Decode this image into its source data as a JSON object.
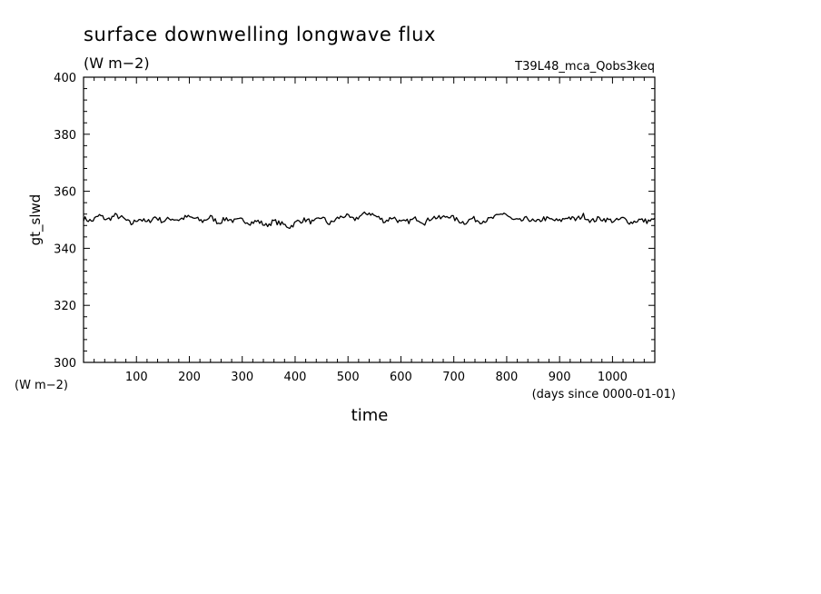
{
  "title": "surface downwelling longwave flux",
  "units": "(W m−2)",
  "run_label": "T39L48_mca_Qobs3keq",
  "yunits_corner": "(W m−2)",
  "xunits_note": "(days since 0000-01-01)",
  "chart_data": {
    "type": "line",
    "title": "surface downwelling longwave flux",
    "xlabel": "time",
    "ylabel": "gt_slwd",
    "xlim": [
      0,
      1080
    ],
    "ylim": [
      300,
      400
    ],
    "x_ticks": [
      100,
      200,
      300,
      400,
      500,
      600,
      700,
      800,
      900,
      1000
    ],
    "y_ticks": [
      300,
      320,
      340,
      360,
      380,
      400
    ],
    "grid": false,
    "color": "#000000",
    "series": [
      {
        "x": [
          0,
          15,
          30,
          45,
          60,
          75,
          90,
          105,
          120,
          135,
          150,
          165,
          180,
          195,
          210,
          225,
          240,
          255,
          270,
          285,
          300,
          315,
          330,
          345,
          360,
          375,
          390,
          405,
          420,
          435,
          450,
          465,
          480,
          495,
          510,
          525,
          540,
          555,
          570,
          585,
          600,
          615,
          630,
          645,
          660,
          675,
          690,
          705,
          720,
          735,
          750,
          765,
          780,
          795,
          810,
          825,
          840,
          855,
          870,
          885,
          900,
          915,
          930,
          945,
          960,
          975,
          990,
          1005,
          1020,
          1035,
          1050,
          1065,
          1080
        ],
        "values": [
          350.5,
          349.5,
          351.5,
          350.0,
          351.5,
          350.5,
          348.5,
          350.5,
          349.0,
          351.0,
          349.5,
          350.5,
          350.0,
          351.0,
          350.5,
          349.5,
          351.0,
          349.0,
          350.5,
          349.5,
          350.0,
          349.0,
          349.5,
          348.0,
          349.5,
          348.5,
          347.5,
          349.5,
          350.0,
          349.0,
          351.0,
          348.5,
          350.5,
          351.5,
          350.0,
          351.5,
          352.5,
          351.0,
          349.5,
          351.0,
          349.0,
          349.5,
          350.5,
          349.0,
          351.0,
          350.5,
          351.5,
          350.0,
          349.0,
          350.5,
          349.5,
          350.0,
          351.0,
          352.5,
          350.0,
          349.5,
          350.5,
          349.0,
          350.5,
          350.0,
          349.5,
          351.0,
          350.0,
          351.5,
          349.5,
          350.5,
          350.0,
          349.5,
          350.5,
          349.0,
          350.0,
          349.5,
          350.0
        ]
      }
    ]
  }
}
